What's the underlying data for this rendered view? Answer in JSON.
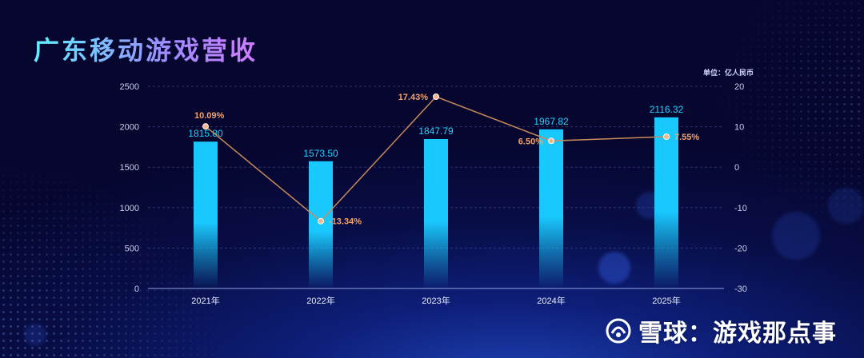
{
  "title": "广东移动游戏营收",
  "unit": "单位：亿人民币",
  "watermark": "雪球：游戏那点事",
  "chart_data": {
    "type": "bar+line",
    "categories": [
      "2021年",
      "2022年",
      "2023年",
      "2024年",
      "2025年"
    ],
    "series": [
      {
        "type": "bar",
        "values": [
          1815.8,
          1573.5,
          1847.79,
          1967.82,
          2116.32
        ],
        "labels": [
          "1815.80",
          "1573.50",
          "1847.79",
          "1967.82",
          "2116.32"
        ],
        "axis": "left"
      },
      {
        "type": "line",
        "values": [
          10.09,
          -13.34,
          17.43,
          6.5,
          7.55
        ],
        "labels": [
          "10.09%",
          "-13.34%",
          "17.43%",
          "6.50%",
          "7.55%"
        ],
        "axis": "right"
      }
    ],
    "left_axis": {
      "min": 0,
      "max": 2500,
      "ticks": [
        "0",
        "500",
        "1000",
        "1500",
        "2000",
        "2500"
      ]
    },
    "right_axis": {
      "min": -30,
      "max": 20,
      "ticks": [
        "-30",
        "-20",
        "-10",
        "0",
        "10",
        "20"
      ]
    },
    "grid": true,
    "colors": {
      "bar": "#19c8ff",
      "line": "#c98a5a",
      "line_label": "#f5a36a",
      "bar_label": "#22d3ff"
    }
  }
}
